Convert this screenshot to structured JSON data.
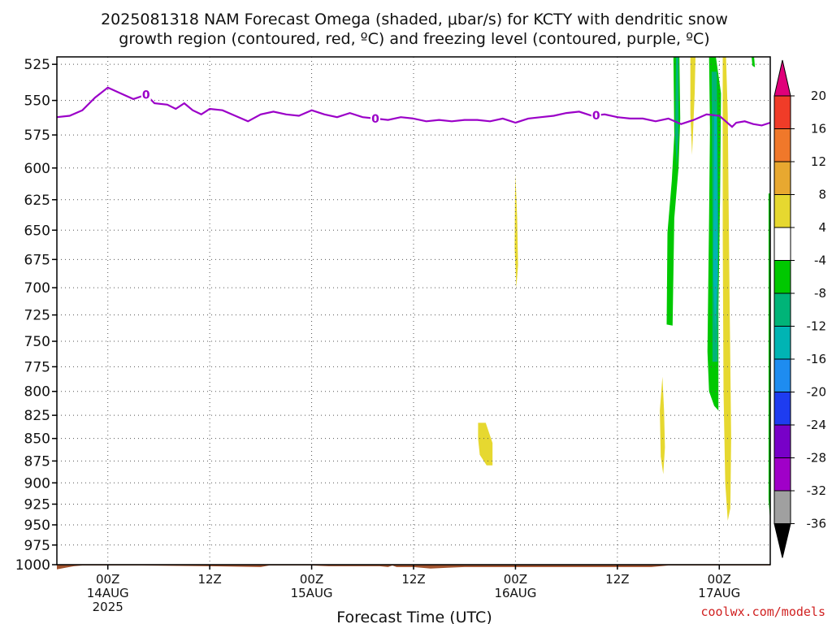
{
  "title": {
    "line1": "2025081318 NAM Forecast Omega (shaded, μbar/s) for KCTY with dendritic snow",
    "line2": "growth region (contoured, red, ºC) and freezing level (contoured, purple, ºC)"
  },
  "credit": "coolwx.com/models",
  "chart_data": {
    "type": "heatmap",
    "xlabel": "Forecast Time (UTC)",
    "ylabel": "",
    "ylim": [
      1000,
      520
    ],
    "y_ticks": [
      "525",
      "550",
      "575",
      "600",
      "625",
      "650",
      "675",
      "700",
      "725",
      "750",
      "775",
      "800",
      "825",
      "850",
      "875",
      "900",
      "925",
      "950",
      "975",
      "1000"
    ],
    "x_ticks": [
      {
        "hour": 6,
        "lines": [
          "00Z",
          "14AUG",
          "2025"
        ]
      },
      {
        "hour": 18,
        "lines": [
          "12Z"
        ]
      },
      {
        "hour": 30,
        "lines": [
          "00Z",
          "15AUG"
        ]
      },
      {
        "hour": 42,
        "lines": [
          "12Z"
        ]
      },
      {
        "hour": 54,
        "lines": [
          "00Z",
          "16AUG"
        ]
      },
      {
        "hour": 66,
        "lines": [
          "12Z"
        ]
      },
      {
        "hour": 78,
        "lines": [
          "00Z",
          "17AUG"
        ]
      }
    ],
    "xlim": [
      0,
      84
    ],
    "grid": true,
    "colorbar": {
      "levels": [
        "20",
        "16",
        "12",
        "8",
        "4",
        "-4",
        "-8",
        "-12",
        "-16",
        "-20",
        "-24",
        "-28",
        "-32",
        "-36"
      ],
      "colors": [
        "#e0007a",
        "#f03c28",
        "#f0782a",
        "#e8a830",
        "#e6d830",
        "#ffffff",
        "#00c800",
        "#00b478",
        "#00b4b4",
        "#1e8cf0",
        "#1e3cf0",
        "#7800c8",
        "#a000c8",
        "#a0a0a0",
        "#000000"
      ]
    },
    "freezing_level": {
      "color": "#9b00c8",
      "contour_label": "0",
      "points": [
        [
          0,
          562
        ],
        [
          1.5,
          561
        ],
        [
          3,
          557
        ],
        [
          4.5,
          548
        ],
        [
          6,
          541
        ],
        [
          7.5,
          545
        ],
        [
          9,
          549
        ],
        [
          10.5,
          546
        ],
        [
          11.5,
          552
        ],
        [
          13,
          553
        ],
        [
          14,
          556
        ],
        [
          15,
          552
        ],
        [
          16,
          557
        ],
        [
          17,
          560
        ],
        [
          18,
          556
        ],
        [
          19.5,
          557
        ],
        [
          21,
          561
        ],
        [
          22.5,
          565
        ],
        [
          24,
          560
        ],
        [
          25.5,
          558
        ],
        [
          27,
          560
        ],
        [
          28.5,
          561
        ],
        [
          30,
          557
        ],
        [
          31.5,
          560
        ],
        [
          33,
          562
        ],
        [
          34.5,
          559
        ],
        [
          36,
          562
        ],
        [
          37.5,
          563
        ],
        [
          39,
          564
        ],
        [
          40.5,
          562
        ],
        [
          42,
          563
        ],
        [
          43.5,
          565
        ],
        [
          45,
          564
        ],
        [
          46.5,
          565
        ],
        [
          48,
          564
        ],
        [
          49.5,
          564
        ],
        [
          51,
          565
        ],
        [
          52.5,
          563
        ],
        [
          54,
          566
        ],
        [
          55.5,
          563
        ],
        [
          57,
          562
        ],
        [
          58.5,
          561
        ],
        [
          60,
          559
        ],
        [
          61.5,
          558
        ],
        [
          63,
          561
        ],
        [
          64.5,
          560
        ],
        [
          66,
          562
        ],
        [
          67.5,
          563
        ],
        [
          69,
          563
        ],
        [
          70.5,
          565
        ],
        [
          72,
          563
        ],
        [
          73.5,
          567
        ],
        [
          75,
          564
        ],
        [
          76.5,
          560
        ],
        [
          78,
          561
        ],
        [
          79.5,
          569
        ],
        [
          80,
          566
        ],
        [
          81,
          565
        ],
        [
          82,
          567
        ],
        [
          83,
          568
        ],
        [
          84,
          566
        ]
      ],
      "label_hours": [
        10.5,
        37.5,
        63.5
      ]
    },
    "omega_regions": [
      {
        "value_bin": "-8",
        "color": "#00c800",
        "points": [
          [
            72.6,
            520
          ],
          [
            73.3,
            520
          ],
          [
            73.4,
            563
          ],
          [
            73.2,
            600
          ],
          [
            72.7,
            640
          ],
          [
            72.5,
            735
          ],
          [
            71.8,
            734
          ],
          [
            71.9,
            652
          ],
          [
            72.4,
            610
          ],
          [
            72.7,
            575
          ]
        ]
      },
      {
        "value_bin": "-12",
        "color": "#00b478",
        "points": [
          [
            72.9,
            520
          ],
          [
            73.2,
            520
          ],
          [
            73.2,
            575
          ],
          [
            73.0,
            600
          ],
          [
            72.8,
            575
          ]
        ]
      },
      {
        "value_bin": "4",
        "color": "#e6d830",
        "points": [
          [
            74.6,
            520
          ],
          [
            75.2,
            520
          ],
          [
            75.1,
            545
          ],
          [
            74.8,
            590
          ],
          [
            74.6,
            560
          ]
        ]
      },
      {
        "value_bin": "-8",
        "color": "#00c800",
        "points": [
          [
            76.8,
            520
          ],
          [
            77.6,
            520
          ],
          [
            78.2,
            545
          ],
          [
            78.1,
            620
          ],
          [
            77.9,
            720
          ],
          [
            77.9,
            820
          ],
          [
            77.4,
            815
          ],
          [
            76.8,
            800
          ],
          [
            76.6,
            760
          ],
          [
            76.8,
            640
          ],
          [
            76.9,
            570
          ]
        ]
      },
      {
        "value_bin": "-12",
        "color": "#00b478",
        "points": [
          [
            77.1,
            530
          ],
          [
            77.7,
            530
          ],
          [
            77.9,
            650
          ],
          [
            77.8,
            770
          ],
          [
            77.2,
            770
          ],
          [
            77.2,
            650
          ]
        ]
      },
      {
        "value_bin": "-16",
        "color": "#00b4b4",
        "points": [
          [
            77.4,
            560
          ],
          [
            77.7,
            560
          ],
          [
            77.8,
            690
          ],
          [
            77.5,
            740
          ],
          [
            77.3,
            690
          ]
        ]
      },
      {
        "value_bin": "4",
        "color": "#e6d830",
        "points": [
          [
            78.4,
            520
          ],
          [
            78.8,
            520
          ],
          [
            79.0,
            560
          ],
          [
            79.2,
            700
          ],
          [
            79.4,
            850
          ],
          [
            79.3,
            930
          ],
          [
            79.0,
            945
          ],
          [
            78.7,
            900
          ],
          [
            78.5,
            800
          ],
          [
            78.4,
            650
          ]
        ]
      },
      {
        "value_bin": "-8",
        "color": "#00c800",
        "points": [
          [
            81.8,
            520
          ],
          [
            82.1,
            520
          ],
          [
            82.2,
            527
          ],
          [
            81.9,
            526
          ]
        ]
      },
      {
        "value_bin": "4",
        "color": "#e6d830",
        "points": [
          [
            54.0,
            605
          ],
          [
            54.2,
            640
          ],
          [
            54.3,
            680
          ],
          [
            54.1,
            700
          ],
          [
            53.9,
            665
          ],
          [
            53.95,
            620
          ]
        ]
      },
      {
        "value_bin": "4",
        "color": "#e6d830",
        "points": [
          [
            49.6,
            833
          ],
          [
            50.5,
            833
          ],
          [
            51.3,
            855
          ],
          [
            51.3,
            880
          ],
          [
            50.6,
            880
          ],
          [
            49.8,
            868
          ],
          [
            49.6,
            850
          ]
        ]
      },
      {
        "value_bin": "4",
        "color": "#e6d830",
        "points": [
          [
            71.3,
            785
          ],
          [
            71.5,
            820
          ],
          [
            71.6,
            860
          ],
          [
            71.4,
            890
          ],
          [
            71.1,
            870
          ],
          [
            71.0,
            820
          ]
        ]
      },
      {
        "value_bin": "-8",
        "color": "#00c800",
        "points": [
          [
            83.8,
            620
          ],
          [
            84,
            620
          ],
          [
            84,
            945
          ],
          [
            83.8,
            920
          ]
        ]
      }
    ],
    "terrain": {
      "color": "#a0522d",
      "points": [
        [
          0,
          1006
        ],
        [
          1,
          1004
        ],
        [
          2,
          1002
        ],
        [
          3,
          1001
        ],
        [
          10,
          1001
        ],
        [
          18,
          1002
        ],
        [
          24,
          1003
        ],
        [
          25,
          1001
        ],
        [
          30,
          1001
        ],
        [
          32,
          1002
        ],
        [
          38,
          1002
        ],
        [
          39,
          1003
        ],
        [
          39.5,
          1001
        ],
        [
          40,
          1003
        ],
        [
          42,
          1003
        ],
        [
          44,
          1005
        ],
        [
          46,
          1004
        ],
        [
          48,
          1003
        ],
        [
          52,
          1003
        ],
        [
          60,
          1003
        ],
        [
          70,
          1003
        ],
        [
          72,
          1001
        ],
        [
          84,
          1001
        ]
      ]
    }
  }
}
